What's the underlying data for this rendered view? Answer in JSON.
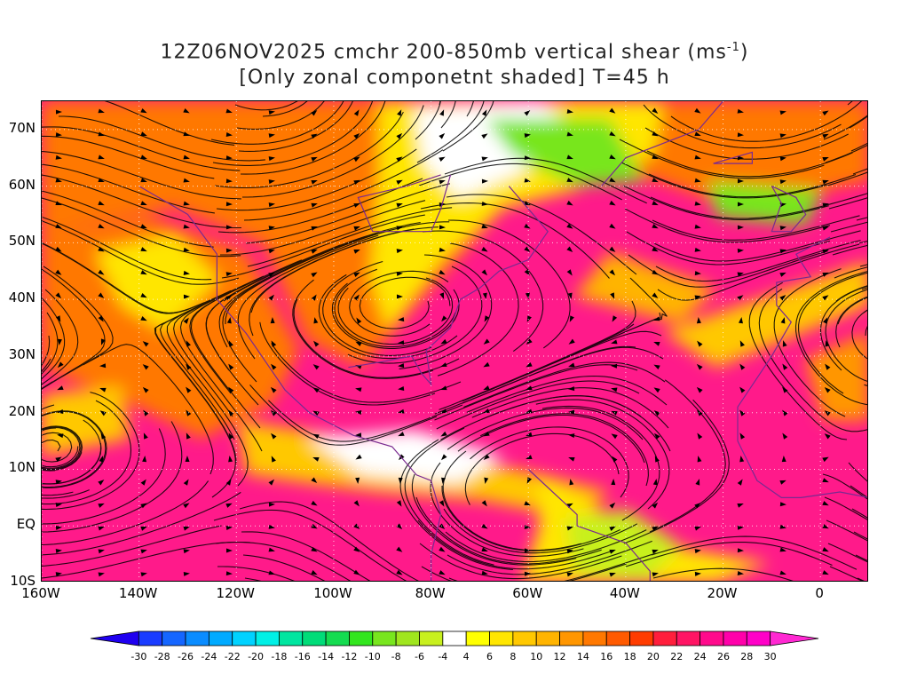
{
  "title": {
    "line1_pre": "12Z06NOV2025 cmchr 200-850mb vertical shear (ms",
    "line1_sup": "-1",
    "line1_post": ")",
    "line2": "[Only zonal componetnt shaded] T=45 h"
  },
  "axes": {
    "lat_labels": [
      "70N",
      "60N",
      "50N",
      "40N",
      "30N",
      "20N",
      "10N",
      "EQ",
      "10S"
    ],
    "lat_values": [
      70,
      60,
      50,
      40,
      30,
      20,
      10,
      0,
      -10
    ],
    "lon_labels": [
      "160W",
      "140W",
      "120W",
      "100W",
      "80W",
      "60W",
      "40W",
      "20W",
      "0"
    ],
    "lon_values": [
      -160,
      -140,
      -120,
      -100,
      -80,
      -60,
      -40,
      -20,
      0
    ],
    "lat_range": [
      -10,
      75
    ],
    "lon_range": [
      -160,
      10
    ]
  },
  "colorbar": {
    "labels": [
      "-30",
      "-28",
      "-26",
      "-24",
      "-22",
      "-20",
      "-18",
      "-16",
      "-14",
      "-12",
      "-10",
      "-8",
      "-6",
      "-4",
      "4",
      "6",
      "8",
      "10",
      "12",
      "14",
      "16",
      "18",
      "20",
      "22",
      "24",
      "26",
      "28",
      "30"
    ],
    "colors": [
      "#1f00f0",
      "#1a3cff",
      "#1566ff",
      "#0a8cff",
      "#00aaff",
      "#00d2ff",
      "#00f0e6",
      "#00e6a0",
      "#00dc78",
      "#14dc50",
      "#32e61e",
      "#78e61e",
      "#a0e61e",
      "#c8f01e",
      "#ffffff",
      "#ffff00",
      "#ffe600",
      "#ffc800",
      "#ffb400",
      "#ff9600",
      "#ff7800",
      "#ff5a00",
      "#ff3c00",
      "#ff1e3c",
      "#ff1464",
      "#ff0a8c",
      "#ff00aa",
      "#ff00c8",
      "#ff28d2"
    ]
  },
  "map": {
    "background_color": "#ff1a8a",
    "streamline_color": "#000000",
    "coast_color": "#7a2a90"
  }
}
